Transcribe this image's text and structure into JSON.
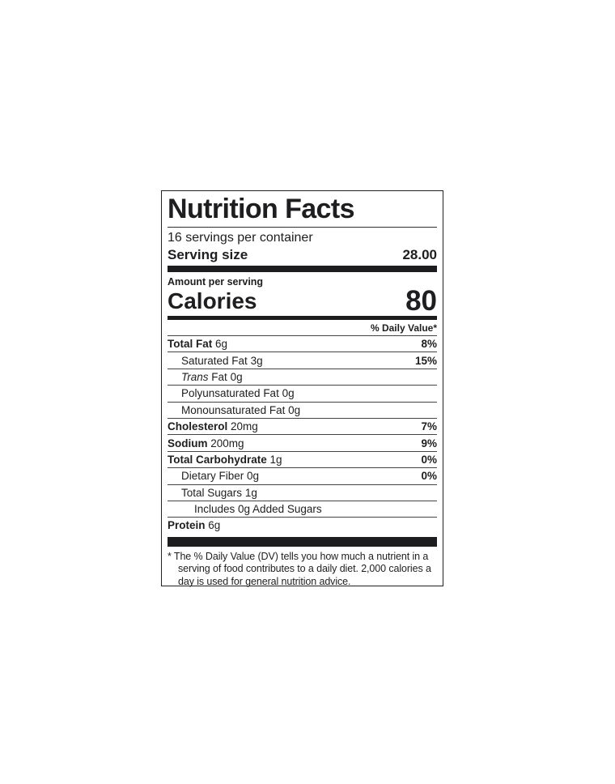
{
  "colors": {
    "text": "#1e1e20",
    "bar": "#1d1d1f",
    "hairline": "#434345",
    "border": "#222225",
    "background": "#ffffff"
  },
  "label": {
    "title": "Nutrition Facts",
    "servings_per_container": "16 servings per container",
    "serving_size_label": "Serving size",
    "serving_size_value": "28.00",
    "amount_per_serving": "Amount per serving",
    "calories_label": "Calories",
    "calories_value": "80",
    "daily_value_header": "% Daily Value*",
    "rows": [
      {
        "name": "Total Fat",
        "amount": "6g",
        "dv": "8%"
      },
      {
        "name": "Saturated Fat",
        "amount": "3g",
        "dv": "15%"
      },
      {
        "name_italic": "Trans",
        "name": "Fat",
        "amount": "0g",
        "dv": ""
      },
      {
        "name": "Polyunsaturated Fat",
        "amount": "0g",
        "dv": ""
      },
      {
        "name": "Monounsaturated Fat",
        "amount": "0g",
        "dv": ""
      },
      {
        "name": "Cholesterol",
        "amount": "20mg",
        "dv": "7%"
      },
      {
        "name": "Sodium",
        "amount": "200mg",
        "dv": "9%"
      },
      {
        "name": "Total Carbohydrate",
        "amount": "1g",
        "dv": "0%"
      },
      {
        "name": "Dietary Fiber",
        "amount": "0g",
        "dv": "0%"
      },
      {
        "name": "Total Sugars",
        "amount": "1g",
        "dv": ""
      },
      {
        "name": "Includes 0g Added Sugars",
        "amount": "",
        "dv": ""
      },
      {
        "name": "Protein",
        "amount": "6g",
        "dv": ""
      }
    ],
    "footnote": "* The % Daily Value (DV) tells you how much a nutrient in a serving of food contributes to a daily diet. 2,000 calories a day is used for general nutrition advice."
  }
}
